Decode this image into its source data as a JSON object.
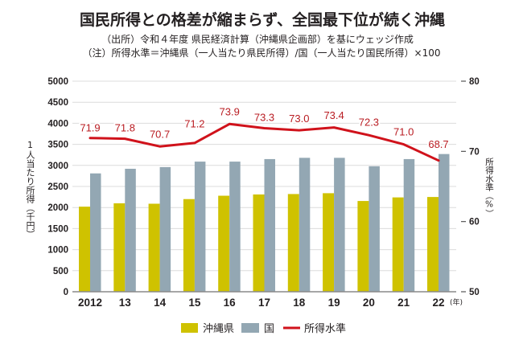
{
  "title": "国民所得との格差が縮まらず、全国最下位が続く沖縄",
  "subtitle": [
    "（出所）令和４年度 県民経済計算（沖縄県企画部）を基にウェッジ作成",
    "（注）所得水準＝沖縄県（一人当たり県民所得）/国（一人当たり国民所得）×100"
  ],
  "colors": {
    "okinawa": "#cfc200",
    "national": "#93a7b3",
    "level_line": "#d0121b",
    "level_label": "#b91c22",
    "grid": "#dcdcdc",
    "axis": "#8a8a8a",
    "tick": "#555555"
  },
  "chart_data": {
    "type": "bar+line",
    "title": "国民所得との格差が縮まらず、全国最下位が続く沖縄",
    "categories": [
      "2012",
      "13",
      "14",
      "15",
      "16",
      "17",
      "18",
      "19",
      "20",
      "21",
      "22"
    ],
    "x_unit": "(年)",
    "series": [
      {
        "name": "沖縄県",
        "type": "bar",
        "axis": "left",
        "values": [
          2020,
          2100,
          2090,
          2200,
          2280,
          2310,
          2320,
          2340,
          2155,
          2240,
          2250
        ]
      },
      {
        "name": "国",
        "type": "bar",
        "axis": "left",
        "values": [
          2810,
          2920,
          2960,
          3090,
          3090,
          3150,
          3180,
          3180,
          2980,
          3150,
          3270
        ]
      },
      {
        "name": "所得水準",
        "type": "line",
        "axis": "right",
        "values": [
          71.9,
          71.8,
          70.7,
          71.2,
          73.9,
          73.3,
          73.0,
          73.4,
          72.3,
          71.0,
          68.7
        ],
        "labels": [
          "71.9",
          "71.8",
          "70.7",
          "71.2",
          "73.9",
          "73.3",
          "73.0",
          "73.4",
          "72.3",
          "71.0",
          "68.7"
        ]
      }
    ],
    "y_left": {
      "label": "1人当たり所得（千円）",
      "range": [
        0,
        5000
      ],
      "ticks": [
        "0",
        "500",
        "1000",
        "1500",
        "2000",
        "2500",
        "3000",
        "3500",
        "4000",
        "4500",
        "5000"
      ]
    },
    "y_right": {
      "label": "所得水準（%）",
      "range": [
        50,
        80
      ],
      "ticks": [
        "50",
        "60",
        "70",
        "80"
      ]
    },
    "grid": true,
    "legend": {
      "position": "bottom",
      "items": [
        "沖縄県",
        "国",
        "所得水準"
      ]
    }
  }
}
